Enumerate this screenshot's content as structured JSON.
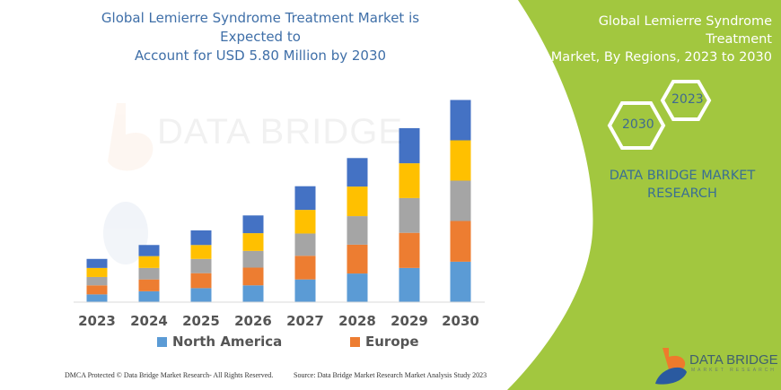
{
  "title": "Global Lemierre Syndrome Treatment Market is Expected to Account for USD 5.80 Million by 2030",
  "title_lines": [
    "Global Lemierre Syndrome Treatment Market is Expected to",
    "Account for USD 5.80 Million by 2030"
  ],
  "panel": {
    "title_lines": [
      "Global Lemierre Syndrome Treatment",
      "Market, By Regions, 2023 to 2030"
    ],
    "hex_start": "2023",
    "hex_end": "2030",
    "brand_lines": [
      "DATA BRIDGE MARKET",
      "RESEARCH"
    ],
    "color": "#a2c73f"
  },
  "watermark": {
    "text": "DATA BRIDGE",
    "sub": "MARKET RESEARCH"
  },
  "logo": {
    "text": "DATA BRIDGE",
    "sub": "MARKET RESEARCH"
  },
  "footer": {
    "left": "DMCA Protected © Data Bridge Market Research-  All Rights Reserved.",
    "right": "Source: Data Bridge Market Research  Market Analysis Study 2023"
  },
  "chart_data": {
    "type": "bar",
    "stacked": true,
    "title": "Global Lemierre Syndrome Treatment Market is Expected to Account for USD 5.80 Million by 2030",
    "categories": [
      "2023",
      "2024",
      "2025",
      "2026",
      "2027",
      "2028",
      "2029",
      "2030"
    ],
    "series": [
      {
        "name": "North America",
        "color": "#5b9bd5",
        "values": [
          0.21,
          0.3,
          0.39,
          0.47,
          0.64,
          0.81,
          0.97,
          1.15
        ]
      },
      {
        "name": "Europe",
        "color": "#ed7d31",
        "values": [
          0.26,
          0.34,
          0.43,
          0.51,
          0.68,
          0.83,
          1.01,
          1.17
        ]
      },
      {
        "color": "#a5a5a5",
        "values": [
          0.24,
          0.33,
          0.41,
          0.48,
          0.64,
          0.82,
          1.0,
          1.16
        ]
      },
      {
        "color": "#ffc000",
        "values": [
          0.26,
          0.34,
          0.4,
          0.51,
          0.68,
          0.85,
          1.0,
          1.16
        ]
      },
      {
        "color": "#4472c4",
        "values": [
          0.26,
          0.32,
          0.42,
          0.51,
          0.68,
          0.82,
          1.01,
          1.16
        ]
      }
    ],
    "legend": [
      "North America",
      "Europe"
    ],
    "legend_placement": "bottom",
    "grid": false,
    "ylim": [
      0,
      5.8
    ]
  }
}
